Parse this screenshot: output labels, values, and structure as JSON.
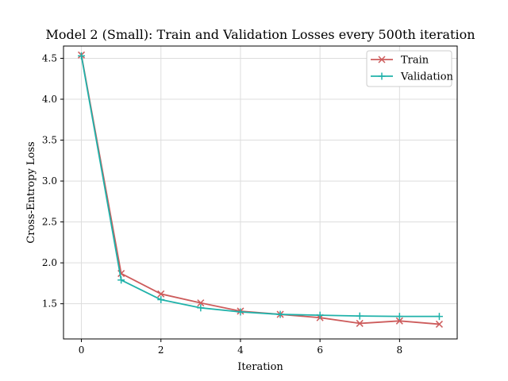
{
  "chart_data": {
    "type": "line",
    "title": "Model 2 (Small): Train and Validation Losses every 500th iteration",
    "xlabel": "Iteration",
    "ylabel": "Cross-Entropy Loss",
    "xlim": [
      -0.45,
      9.45
    ],
    "ylim": [
      1.07,
      4.65
    ],
    "xticks": [
      0,
      2,
      4,
      6,
      8
    ],
    "yticks": [
      1.5,
      2.0,
      2.5,
      3.0,
      3.5,
      4.0,
      4.5
    ],
    "xtick_labels": [
      "0",
      "2",
      "4",
      "6",
      "8"
    ],
    "ytick_labels": [
      "1.5",
      "2.0",
      "2.5",
      "3.0",
      "3.5",
      "4.0",
      "4.5"
    ],
    "grid": true,
    "legend_position": "top-right",
    "x": [
      0,
      1,
      2,
      3,
      4,
      5,
      6,
      7,
      8,
      9
    ],
    "series": [
      {
        "name": "Train",
        "color": "#cd5c5c",
        "marker": "x",
        "values": [
          4.54,
          1.87,
          1.62,
          1.51,
          1.41,
          1.37,
          1.33,
          1.26,
          1.29,
          1.25
        ]
      },
      {
        "name": "Validation",
        "color": "#20b2aa",
        "marker": "plus",
        "values": [
          4.53,
          1.79,
          1.55,
          1.45,
          1.4,
          1.37,
          1.36,
          1.35,
          1.345,
          1.345
        ]
      }
    ]
  }
}
